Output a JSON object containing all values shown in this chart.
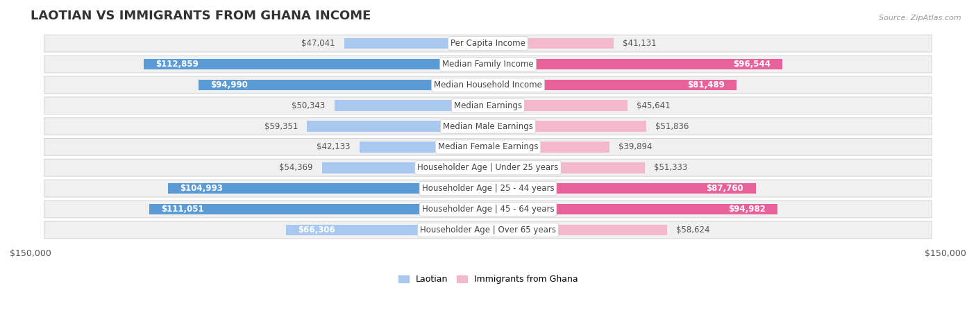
{
  "title": "LAOTIAN VS IMMIGRANTS FROM GHANA INCOME",
  "source": "Source: ZipAtlas.com",
  "categories": [
    "Per Capita Income",
    "Median Family Income",
    "Median Household Income",
    "Median Earnings",
    "Median Male Earnings",
    "Median Female Earnings",
    "Householder Age | Under 25 years",
    "Householder Age | 25 - 44 years",
    "Householder Age | 45 - 64 years",
    "Householder Age | Over 65 years"
  ],
  "laotian_values": [
    47041,
    112859,
    94990,
    50343,
    59351,
    42133,
    54369,
    104993,
    111051,
    66306
  ],
  "ghana_values": [
    41131,
    96544,
    81489,
    45641,
    51836,
    39894,
    51333,
    87760,
    94982,
    58624
  ],
  "laotian_color_light": "#a8c8f0",
  "laotian_color_dark": "#5b9bd5",
  "ghana_color_light": "#f4b8cc",
  "ghana_color_dark": "#e8619a",
  "laotian_dark_threshold": 80000,
  "ghana_dark_threshold": 80000,
  "bar_height": 0.52,
  "xlim": 150000,
  "background_color": "#ffffff",
  "row_bg_color": "#f0f0f0",
  "row_border_color": "#d8d8d8",
  "title_fontsize": 13,
  "label_fontsize": 8.5,
  "category_fontsize": 8.5,
  "inside_label_threshold": 60000,
  "legend_label1": "Laotian",
  "legend_label2": "Immigrants from Ghana"
}
